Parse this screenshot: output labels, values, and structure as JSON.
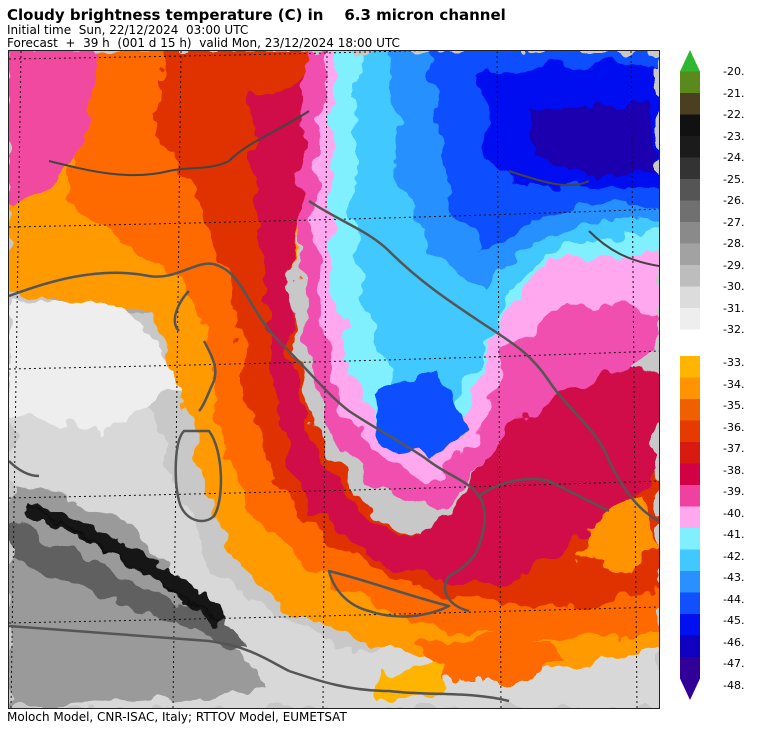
{
  "header": {
    "title": "Cloudy brightness temperature (C) in    6.3 micron channel",
    "initial_time": "Initial time  Sun, 22/12/2024  03:00 UTC",
    "forecast": "Forecast  +  39 h  (001 d 15 h)  valid Mon, 23/12/2024 18:00 UTC"
  },
  "footer": {
    "credits": "Moloch Model, CNR-ISAC, Italy; RTTOV Model, EUMETSAT"
  },
  "map": {
    "content": "cloudy brightness temperature field over Italy and the central Mediterranean"
  },
  "color_scale": {
    "gray_group": [
      {
        "label": "-20.",
        "color": "#2fb82f"
      },
      {
        "label": "-21.",
        "color": "#5a8a1c"
      },
      {
        "label": "-22.",
        "color": "#4a4020"
      },
      {
        "label": "-23.",
        "color": "#111111"
      },
      {
        "label": "-24.",
        "color": "#1b1b1b"
      },
      {
        "label": "-25.",
        "color": "#333333"
      },
      {
        "label": "-26.",
        "color": "#555555"
      },
      {
        "label": "-27.",
        "color": "#707070"
      },
      {
        "label": "-28.",
        "color": "#8a8a8a"
      },
      {
        "label": "-29.",
        "color": "#a2a2a2"
      },
      {
        "label": "-30.",
        "color": "#bdbdbd"
      },
      {
        "label": "-31.",
        "color": "#dcdcdc"
      },
      {
        "label": "-32.",
        "color": "#eeeeee"
      }
    ],
    "color_group": [
      {
        "label": "-33.",
        "color": "#ffb400"
      },
      {
        "label": "-34.",
        "color": "#ff9400"
      },
      {
        "label": "-35.",
        "color": "#f06000"
      },
      {
        "label": "-36.",
        "color": "#e63a00"
      },
      {
        "label": "-37.",
        "color": "#d81a10"
      },
      {
        "label": "-38.",
        "color": "#d20045"
      },
      {
        "label": "-39.",
        "color": "#f040a0"
      },
      {
        "label": "-40.",
        "color": "#ffa8f0"
      },
      {
        "label": "-41.",
        "color": "#80f0ff"
      },
      {
        "label": "-42.",
        "color": "#40c8ff"
      },
      {
        "label": "-43.",
        "color": "#2890ff"
      },
      {
        "label": "-44.",
        "color": "#1050ff"
      },
      {
        "label": "-45.",
        "color": "#0010f0"
      },
      {
        "label": "-46.",
        "color": "#1000c0"
      },
      {
        "label": "-47.",
        "color": "#300098"
      },
      {
        "label": "-48.",
        "color": ""
      }
    ]
  }
}
